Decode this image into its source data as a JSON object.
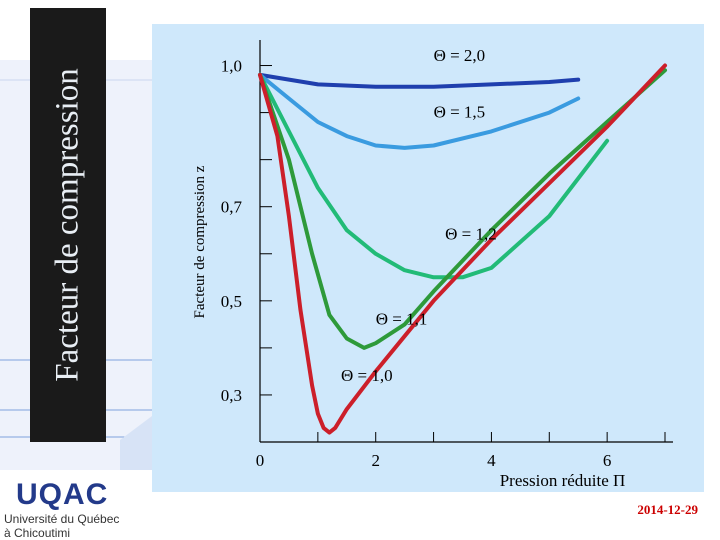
{
  "slide": {
    "side_title": "Facteur de compression",
    "date": "2014-12-29",
    "logo": {
      "name": "UQAC",
      "line1": "Université du Québec",
      "line2": "à Chicoutimi"
    },
    "colors": {
      "panel": "#cfe8fb",
      "title_bar": "#1a1a1a",
      "date": "#cc0000",
      "logo": "#233a8a"
    }
  },
  "chart_data": {
    "type": "line",
    "title": "",
    "xlabel": "Pression réduite Π",
    "ylabel": "Facteur de compression z",
    "xlim": [
      0,
      7
    ],
    "ylim": [
      0.2,
      1.05
    ],
    "x_ticks": [
      0,
      2,
      4,
      6
    ],
    "x_tick_labels": [
      "0",
      "2",
      "4",
      "6"
    ],
    "y_ticks": [
      0.3,
      0.5,
      0.7,
      1.0
    ],
    "y_tick_labels": [
      "0,3",
      "0,5",
      "0,7",
      "1,0"
    ],
    "series": [
      {
        "name": "Θ = 2,0",
        "color": "#1f3fae",
        "x": [
          0,
          1,
          2,
          3,
          4,
          5,
          5.5
        ],
        "y": [
          0.98,
          0.96,
          0.955,
          0.955,
          0.96,
          0.965,
          0.97
        ]
      },
      {
        "name": "Θ = 1,5",
        "color": "#3a9be0",
        "x": [
          0,
          0.5,
          1,
          1.5,
          2,
          2.5,
          3,
          4,
          5,
          5.5
        ],
        "y": [
          0.98,
          0.93,
          0.88,
          0.85,
          0.83,
          0.825,
          0.83,
          0.86,
          0.9,
          0.93
        ]
      },
      {
        "name": "Θ = 1,2",
        "color": "#22bb77",
        "x": [
          0,
          0.5,
          1,
          1.5,
          2,
          2.5,
          3,
          3.5,
          4,
          5,
          6
        ],
        "y": [
          0.98,
          0.86,
          0.74,
          0.65,
          0.6,
          0.565,
          0.55,
          0.55,
          0.57,
          0.68,
          0.84
        ]
      },
      {
        "name": "Θ = 1,1",
        "color": "#2e9a3a",
        "x": [
          0,
          0.5,
          0.9,
          1.2,
          1.5,
          1.8,
          2,
          2.5,
          3,
          4,
          5,
          6,
          7
        ],
        "y": [
          0.98,
          0.8,
          0.6,
          0.47,
          0.42,
          0.4,
          0.41,
          0.45,
          0.52,
          0.65,
          0.77,
          0.88,
          0.99
        ]
      },
      {
        "name": "Θ = 1,0",
        "color": "#cc1f2a",
        "x": [
          0,
          0.3,
          0.5,
          0.7,
          0.9,
          1.0,
          1.1,
          1.2,
          1.3,
          1.5,
          2,
          3,
          4,
          5,
          6,
          7
        ],
        "y": [
          0.98,
          0.85,
          0.68,
          0.48,
          0.32,
          0.26,
          0.23,
          0.22,
          0.23,
          0.27,
          0.35,
          0.5,
          0.63,
          0.75,
          0.87,
          1.0
        ]
      }
    ],
    "annotations": [
      {
        "text": "Θ = 2,0",
        "x": 3.0,
        "y": 1.01
      },
      {
        "text": "Θ = 1,5",
        "x": 3.0,
        "y": 0.89
      },
      {
        "text": "Θ = 1,2",
        "x": 3.2,
        "y": 0.63
      },
      {
        "text": "Θ = 1,1",
        "x": 2.0,
        "y": 0.45
      },
      {
        "text": "Θ = 1,0",
        "x": 1.4,
        "y": 0.33
      }
    ],
    "grid": false,
    "legend": "none"
  }
}
